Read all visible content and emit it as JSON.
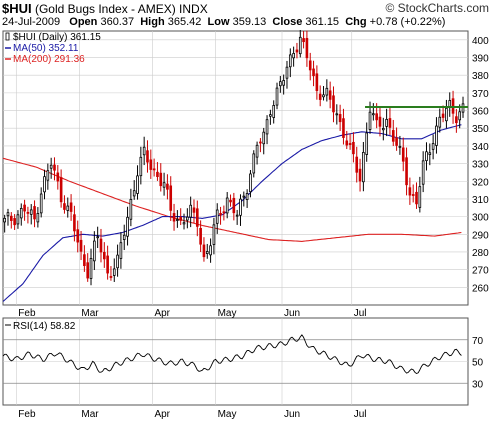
{
  "header": {
    "symbol": "$HUI",
    "name": "(Gold Bugs Index - AMEX)",
    "exchange": "INDX",
    "date": "24-Jul-2009",
    "open_label": "Open",
    "open": "360.37",
    "high_label": "High",
    "high": "365.42",
    "low_label": "Low",
    "low": "359.13",
    "close_label": "Close",
    "close": "361.15",
    "chg_label": "Chg",
    "chg": "+0.78 (+0.22%)",
    "brand": "© StockCharts.com"
  },
  "colors": {
    "price": "#000000",
    "up_bar": "#000000",
    "down_bar": "#cc0000",
    "ma50": "#1a1aa6",
    "ma200": "#dd2222",
    "resistance": "#2a7d1e",
    "rsi": "#000000",
    "grid": "#cccccc",
    "neg_text": "#cc0000"
  },
  "chart_data": [
    {
      "type": "candlestick",
      "legend": [
        {
          "label": "$HUI (Daily) 361.15",
          "color": "#000000",
          "icon": "candle-icon"
        },
        {
          "label": "MA(50) 352.11",
          "color": "#1a1aa6",
          "icon": "line-icon"
        },
        {
          "label": "MA(200) 291.36",
          "color": "#dd2222",
          "icon": "line-icon"
        }
      ],
      "legend_position": "top-left",
      "grid": true,
      "ylim": [
        250,
        405
      ],
      "yticks": [
        260,
        270,
        280,
        290,
        300,
        310,
        320,
        330,
        340,
        350,
        360,
        370,
        380,
        390,
        400
      ],
      "xlim": [
        0,
        140
      ],
      "months": [
        {
          "label": "Feb",
          "x": 4
        },
        {
          "label": "Mar",
          "x": 23
        },
        {
          "label": "Apr",
          "x": 45
        },
        {
          "label": "May",
          "x": 64
        },
        {
          "label": "Jun",
          "x": 84
        },
        {
          "label": "Jul",
          "x": 105
        }
      ],
      "close_keys": [
        {
          "x": 0,
          "y": 297
        },
        {
          "x": 3,
          "y": 300
        },
        {
          "x": 6,
          "y": 304
        },
        {
          "x": 9,
          "y": 298
        },
        {
          "x": 11,
          "y": 315
        },
        {
          "x": 14,
          "y": 330
        },
        {
          "x": 17,
          "y": 312
        },
        {
          "x": 20,
          "y": 300
        },
        {
          "x": 23,
          "y": 278
        },
        {
          "x": 25,
          "y": 270
        },
        {
          "x": 28,
          "y": 288
        },
        {
          "x": 31,
          "y": 268
        },
        {
          "x": 34,
          "y": 274
        },
        {
          "x": 37,
          "y": 300
        },
        {
          "x": 40,
          "y": 326
        },
        {
          "x": 42,
          "y": 335
        },
        {
          "x": 45,
          "y": 326
        },
        {
          "x": 48,
          "y": 318
        },
        {
          "x": 50,
          "y": 303
        },
        {
          "x": 53,
          "y": 297
        },
        {
          "x": 56,
          "y": 302
        },
        {
          "x": 58,
          "y": 298
        },
        {
          "x": 60,
          "y": 276
        },
        {
          "x": 62,
          "y": 285
        },
        {
          "x": 64,
          "y": 300
        },
        {
          "x": 67,
          "y": 310
        },
        {
          "x": 70,
          "y": 300
        },
        {
          "x": 73,
          "y": 318
        },
        {
          "x": 76,
          "y": 340
        },
        {
          "x": 78,
          "y": 345
        },
        {
          "x": 80,
          "y": 362
        },
        {
          "x": 82,
          "y": 370
        },
        {
          "x": 84,
          "y": 378
        },
        {
          "x": 87,
          "y": 395
        },
        {
          "x": 89,
          "y": 400
        },
        {
          "x": 91,
          "y": 390
        },
        {
          "x": 94,
          "y": 372
        },
        {
          "x": 97,
          "y": 368
        },
        {
          "x": 100,
          "y": 358
        },
        {
          "x": 102,
          "y": 348
        },
        {
          "x": 105,
          "y": 332
        },
        {
          "x": 107,
          "y": 322
        },
        {
          "x": 110,
          "y": 362
        },
        {
          "x": 112,
          "y": 350
        },
        {
          "x": 115,
          "y": 355
        },
        {
          "x": 117,
          "y": 345
        },
        {
          "x": 120,
          "y": 330
        },
        {
          "x": 122,
          "y": 314
        },
        {
          "x": 124,
          "y": 308
        },
        {
          "x": 126,
          "y": 328
        },
        {
          "x": 129,
          "y": 345
        },
        {
          "x": 131,
          "y": 355
        },
        {
          "x": 134,
          "y": 362
        },
        {
          "x": 136,
          "y": 358
        },
        {
          "x": 138,
          "y": 361
        }
      ],
      "ma50_keys": [
        {
          "x": 0,
          "y": 252
        },
        {
          "x": 6,
          "y": 262
        },
        {
          "x": 12,
          "y": 278
        },
        {
          "x": 18,
          "y": 288
        },
        {
          "x": 24,
          "y": 290
        },
        {
          "x": 30,
          "y": 289
        },
        {
          "x": 36,
          "y": 291
        },
        {
          "x": 42,
          "y": 295
        },
        {
          "x": 48,
          "y": 300
        },
        {
          "x": 54,
          "y": 300
        },
        {
          "x": 60,
          "y": 299
        },
        {
          "x": 66,
          "y": 301
        },
        {
          "x": 72,
          "y": 309
        },
        {
          "x": 78,
          "y": 320
        },
        {
          "x": 84,
          "y": 330
        },
        {
          "x": 90,
          "y": 338
        },
        {
          "x": 96,
          "y": 343
        },
        {
          "x": 102,
          "y": 346
        },
        {
          "x": 108,
          "y": 348
        },
        {
          "x": 114,
          "y": 347
        },
        {
          "x": 120,
          "y": 344
        },
        {
          "x": 126,
          "y": 344
        },
        {
          "x": 132,
          "y": 349
        },
        {
          "x": 138,
          "y": 352
        }
      ],
      "ma200_keys": [
        {
          "x": 0,
          "y": 333
        },
        {
          "x": 10,
          "y": 328
        },
        {
          "x": 20,
          "y": 320
        },
        {
          "x": 30,
          "y": 313
        },
        {
          "x": 40,
          "y": 306
        },
        {
          "x": 50,
          "y": 300
        },
        {
          "x": 60,
          "y": 295
        },
        {
          "x": 70,
          "y": 291
        },
        {
          "x": 80,
          "y": 287
        },
        {
          "x": 90,
          "y": 286
        },
        {
          "x": 100,
          "y": 288
        },
        {
          "x": 110,
          "y": 290
        },
        {
          "x": 120,
          "y": 290
        },
        {
          "x": 130,
          "y": 289
        },
        {
          "x": 138,
          "y": 291
        }
      ],
      "resistance": {
        "x0": 109,
        "x1": 140,
        "y": 362
      }
    },
    {
      "type": "line",
      "legend": [
        {
          "label": "RSI(14) 58.82",
          "color": "#000000"
        }
      ],
      "ylim": [
        10,
        90
      ],
      "yticks": [
        30,
        50,
        70
      ],
      "ref_lines": [
        30,
        70
      ],
      "keys": [
        {
          "x": 0,
          "y": 55
        },
        {
          "x": 4,
          "y": 52
        },
        {
          "x": 8,
          "y": 57
        },
        {
          "x": 12,
          "y": 52
        },
        {
          "x": 16,
          "y": 58
        },
        {
          "x": 20,
          "y": 50
        },
        {
          "x": 24,
          "y": 42
        },
        {
          "x": 27,
          "y": 48
        },
        {
          "x": 30,
          "y": 40
        },
        {
          "x": 34,
          "y": 47
        },
        {
          "x": 38,
          "y": 52
        },
        {
          "x": 42,
          "y": 57
        },
        {
          "x": 46,
          "y": 52
        },
        {
          "x": 50,
          "y": 48
        },
        {
          "x": 54,
          "y": 50
        },
        {
          "x": 58,
          "y": 46
        },
        {
          "x": 60,
          "y": 40
        },
        {
          "x": 64,
          "y": 50
        },
        {
          "x": 68,
          "y": 52
        },
        {
          "x": 72,
          "y": 55
        },
        {
          "x": 76,
          "y": 62
        },
        {
          "x": 80,
          "y": 64
        },
        {
          "x": 84,
          "y": 66
        },
        {
          "x": 87,
          "y": 70
        },
        {
          "x": 90,
          "y": 72
        },
        {
          "x": 93,
          "y": 62
        },
        {
          "x": 96,
          "y": 58
        },
        {
          "x": 100,
          "y": 52
        },
        {
          "x": 104,
          "y": 46
        },
        {
          "x": 108,
          "y": 56
        },
        {
          "x": 112,
          "y": 52
        },
        {
          "x": 116,
          "y": 50
        },
        {
          "x": 120,
          "y": 43
        },
        {
          "x": 124,
          "y": 40
        },
        {
          "x": 128,
          "y": 48
        },
        {
          "x": 132,
          "y": 55
        },
        {
          "x": 136,
          "y": 59
        },
        {
          "x": 138,
          "y": 58
        }
      ]
    }
  ]
}
